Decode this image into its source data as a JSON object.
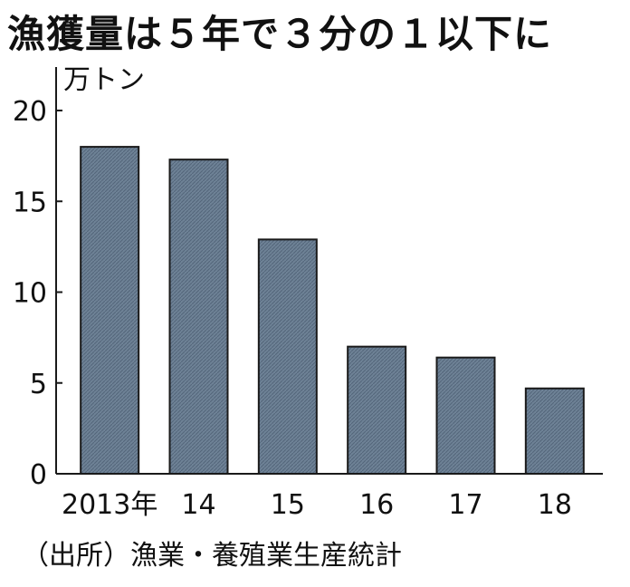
{
  "chart_data": {
    "type": "bar",
    "title": "漁獲量は５年で３分の１以下に",
    "unit_label": "万トン",
    "categories": [
      "2013年",
      "14",
      "15",
      "16",
      "17",
      "18"
    ],
    "values": [
      18.0,
      17.3,
      12.9,
      7.0,
      6.4,
      4.7
    ],
    "ylim": [
      0,
      20
    ],
    "yticks": [
      "0",
      "5",
      "10",
      "15",
      "20"
    ],
    "source": "（出所）漁業・養殖業生産統計",
    "grid": false,
    "legend": "none",
    "colors": {
      "bar_fill": "#6e8296",
      "bar_stroke": "#1a1a1a",
      "axis": "#1a1a1a"
    }
  }
}
